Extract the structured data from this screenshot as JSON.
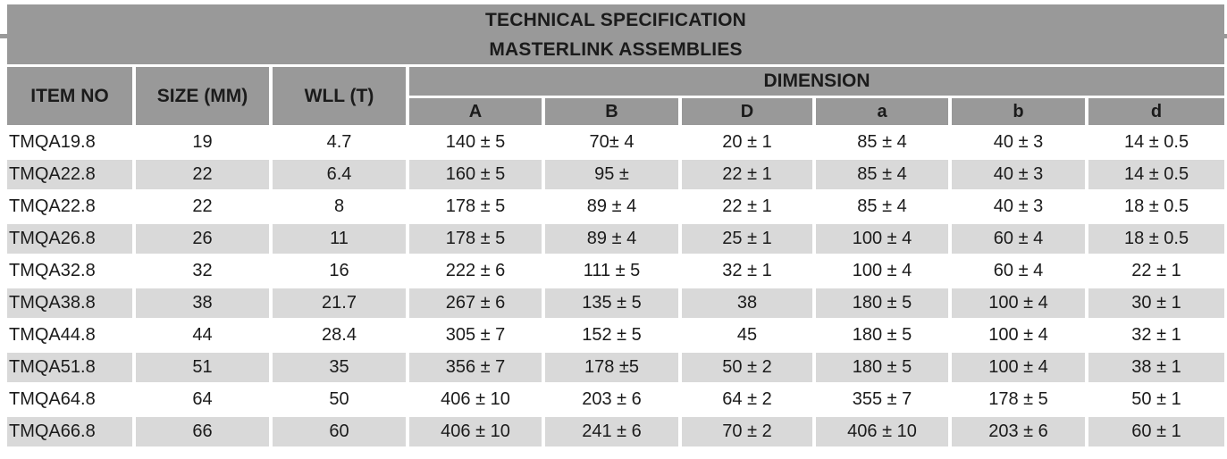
{
  "colors": {
    "header_bg": "#999999",
    "alt_row_bg": "#d9d9d9",
    "text": "#1b1b1b",
    "page_bg": "#ffffff",
    "separator": "#ffffff"
  },
  "table": {
    "title_line1": "TECHNICAL SPECIFICATION",
    "title_line2": "MASTERLINK ASSEMBLIES",
    "columns": [
      "ITEM NO",
      "SIZE (MM)",
      "WLL (T)"
    ],
    "dimension_header": "DIMENSION",
    "dimension_columns": [
      "A",
      "B",
      "D",
      "a",
      "b",
      "d"
    ],
    "rows": [
      [
        "TMQA19.8",
        "19",
        "4.7",
        "140 ± 5",
        "70± 4",
        "20 ± 1",
        "85 ± 4",
        "40 ± 3",
        "14 ± 0.5"
      ],
      [
        "TMQA22.8",
        "22",
        "6.4",
        "160 ± 5",
        "95 ±",
        "22 ± 1",
        "85 ± 4",
        "40 ± 3",
        "14 ± 0.5"
      ],
      [
        "TMQA22.8",
        "22",
        "8",
        "178 ± 5",
        "89 ± 4",
        "22 ± 1",
        "85 ± 4",
        "40 ± 3",
        "18 ± 0.5"
      ],
      [
        "TMQA26.8",
        "26",
        "11",
        "178 ± 5",
        "89 ± 4",
        "25 ± 1",
        "100 ± 4",
        "60 ± 4",
        "18 ± 0.5"
      ],
      [
        "TMQA32.8",
        "32",
        "16",
        "222 ± 6",
        "111 ± 5",
        "32 ± 1",
        "100 ± 4",
        "60 ± 4",
        "22 ± 1"
      ],
      [
        "TMQA38.8",
        "38",
        "21.7",
        "267 ± 6",
        "135 ± 5",
        "38",
        "180 ± 5",
        "100 ± 4",
        "30 ± 1"
      ],
      [
        "TMQA44.8",
        "44",
        "28.4",
        "305 ± 7",
        "152 ± 5",
        "45",
        "180 ± 5",
        "100 ± 4",
        "32 ± 1"
      ],
      [
        "TMQA51.8",
        "51",
        "35",
        "356 ± 7",
        "178 ±5",
        "50 ± 2",
        "180 ± 5",
        "100 ± 4",
        "38 ± 1"
      ],
      [
        "TMQA64.8",
        "64",
        "50",
        "406 ± 10",
        "203 ± 6",
        "64 ± 2",
        "355 ± 7",
        "178 ± 5",
        "50 ± 1"
      ],
      [
        "TMQA66.8",
        "66",
        "60",
        "406 ± 10",
        "241 ± 6",
        "70 ± 2",
        "406 ± 10",
        "203 ± 6",
        "60 ± 1"
      ]
    ]
  }
}
